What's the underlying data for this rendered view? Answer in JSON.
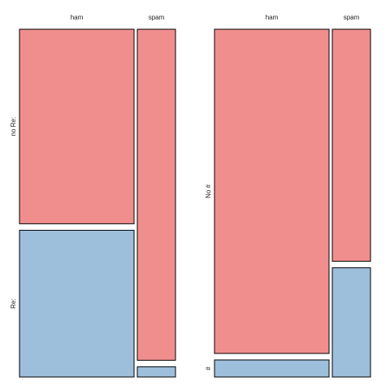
{
  "chart_data": [
    {
      "type": "mosaic",
      "columns": [
        "ham",
        "spam"
      ],
      "rows": [
        "no Re:",
        "Re:"
      ],
      "column_fractions": [
        0.75,
        0.25
      ],
      "cells": [
        {
          "column": "ham",
          "row": "no Re:",
          "fraction_within_column": 0.57
        },
        {
          "column": "ham",
          "row": "Re:",
          "fraction_within_column": 0.43
        },
        {
          "column": "spam",
          "row": "no Re:",
          "fraction_within_column": 0.97
        },
        {
          "column": "spam",
          "row": "Re:",
          "fraction_within_column": 0.03
        }
      ]
    },
    {
      "type": "mosaic",
      "columns": [
        "ham",
        "spam"
      ],
      "rows": [
        "No #",
        "#"
      ],
      "column_fractions": [
        0.75,
        0.25
      ],
      "cells": [
        {
          "column": "ham",
          "row": "No #",
          "fraction_within_column": 0.95
        },
        {
          "column": "ham",
          "row": "#",
          "fraction_within_column": 0.05
        },
        {
          "column": "spam",
          "row": "No #",
          "fraction_within_column": 0.68
        },
        {
          "column": "spam",
          "row": "#",
          "fraction_within_column": 0.32
        }
      ]
    }
  ],
  "colors": {
    "top_row": "#f08e8e",
    "bottom_row": "#9dbfdc"
  }
}
